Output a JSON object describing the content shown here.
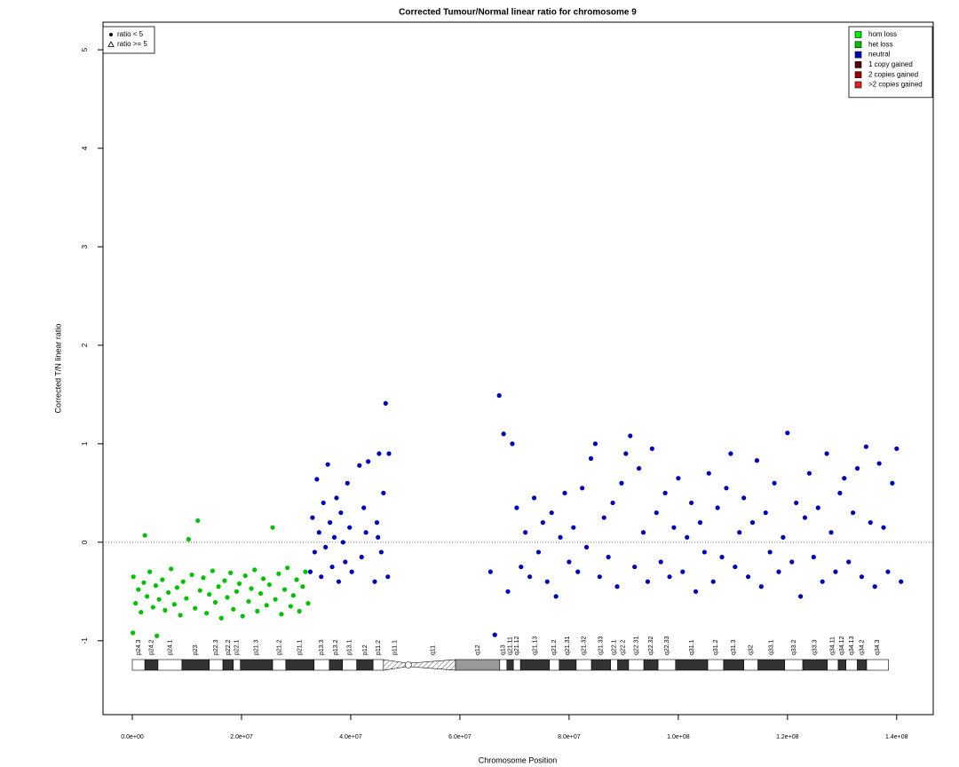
{
  "chart_data": {
    "type": "scatter",
    "title": "Corrected Tumour/Normal linear ratio for chromosome  9",
    "x_label": "Chromosome Position",
    "y_label": "Corrected T/N linear ratio",
    "xlim": [
      -5370000.0,
      146700000.0
    ],
    "ylim": [
      -1.75,
      5.28
    ],
    "xticks": [
      {
        "value": 0,
        "label": "0.0e+00"
      },
      {
        "value": 20000000.0,
        "label": "2.0e+07"
      },
      {
        "value": 40000000.0,
        "label": "4.0e+07"
      },
      {
        "value": 60000000.0,
        "label": "6.0e+07"
      },
      {
        "value": 80000000.0,
        "label": "8.0e+07"
      },
      {
        "value": 100000000.0,
        "label": "1.0e+08"
      },
      {
        "value": 120000000.0,
        "label": "1.2e+08"
      },
      {
        "value": 140000000.0,
        "label": "1.4e+08"
      }
    ],
    "yticks": [
      -1,
      0,
      1,
      2,
      3,
      4,
      5
    ],
    "reference_line": 0,
    "legend_position": "top-right",
    "shape_legend": [
      {
        "label": "ratio < 5",
        "shape": "dot"
      },
      {
        "label": "ratio >= 5",
        "shape": "triangle"
      }
    ],
    "series": [
      {
        "name": "hom loss",
        "color": "#00ee00",
        "x": [],
        "values": []
      },
      {
        "name": "het loss",
        "color": "#00c000",
        "x": [
          100000.0,
          200000.0,
          600000.0,
          1100000.0,
          1600000.0,
          2100000.0,
          2300000.0,
          2700000.0,
          3200000.0,
          3800000.0,
          4300000.0,
          4500000.0,
          4900000.0,
          5500000.0,
          6000000.0,
          6600000.0,
          7100000.0,
          7700000.0,
          8200000.0,
          8800000.0,
          9300000.0,
          9900000.0,
          10300000.0,
          10900000.0,
          11500000.0,
          12000000.0,
          12400000.0,
          13000000.0,
          13600000.0,
          14100000.0,
          14700000.0,
          15200000.0,
          15800000.0,
          16300000.0,
          16900000.0,
          17400000.0,
          18000000.0,
          18500000.0,
          19100000.0,
          19600000.0,
          20200000.0,
          20700000.0,
          21300000.0,
          21800000.0,
          22400000.0,
          22900000.0,
          23500000.0,
          24000000.0,
          24600000.0,
          25100000.0,
          25700000.0,
          26200000.0,
          26800000.0,
          27300000.0,
          27900000.0,
          28400000.0,
          29000000.0,
          29500000.0,
          30100000.0,
          30600000.0,
          31200000.0,
          31700000.0,
          32200000.0
        ],
        "values": [
          -0.92,
          -0.35,
          -0.62,
          -0.48,
          -0.71,
          -0.41,
          0.07,
          -0.55,
          -0.3,
          -0.66,
          -0.44,
          -0.95,
          -0.58,
          -0.38,
          -0.69,
          -0.51,
          -0.27,
          -0.63,
          -0.46,
          -0.74,
          -0.4,
          -0.57,
          0.03,
          -0.33,
          -0.67,
          0.22,
          -0.49,
          -0.36,
          -0.72,
          -0.53,
          -0.29,
          -0.61,
          -0.45,
          -0.77,
          -0.39,
          -0.56,
          -0.31,
          -0.68,
          -0.5,
          -0.42,
          -0.75,
          -0.34,
          -0.6,
          -0.47,
          -0.28,
          -0.7,
          -0.52,
          -0.37,
          -0.64,
          -0.43,
          0.15,
          -0.58,
          -0.32,
          -0.73,
          -0.48,
          -0.26,
          -0.65,
          -0.54,
          -0.38,
          -0.7,
          -0.45,
          -0.3,
          -0.62
        ]
      },
      {
        "name": "neutral",
        "color": "#0000bb",
        "x": [
          32600000.0,
          33000000.0,
          33400000.0,
          33800000.0,
          34200000.0,
          34600000.0,
          35000000.0,
          35400000.0,
          35800000.0,
          36200000.0,
          36600000.0,
          37000000.0,
          37400000.0,
          37800000.0,
          38200000.0,
          38600000.0,
          39000000.0,
          39400000.0,
          39800000.0,
          40200000.0,
          41600000.0,
          42000000.0,
          42400000.0,
          42800000.0,
          43200000.0,
          44400000.0,
          44800000.0,
          45200000.0,
          45600000.0,
          46000000.0,
          46400000.0,
          46800000.0,
          47000000.0,
          45000000.0,
          65600000.0,
          66400000.0,
          67200000.0,
          68000000.0,
          68800000.0,
          69600000.0,
          70400000.0,
          71200000.0,
          72000000.0,
          72800000.0,
          73600000.0,
          74400000.0,
          75200000.0,
          76000000.0,
          76800000.0,
          77600000.0,
          78400000.0,
          79200000.0,
          80000000.0,
          80800000.0,
          81600000.0,
          82400000.0,
          83200000.0,
          84000000.0,
          84800000.0,
          85600000.0,
          86400000.0,
          87200000.0,
          88000000.0,
          88800000.0,
          89600000.0,
          90400000.0,
          91200000.0,
          92000000.0,
          92800000.0,
          93600000.0,
          94400000.0,
          95200000.0,
          96000000.0,
          96800000.0,
          97600000.0,
          98400000.0,
          99200000.0,
          100000000.0,
          100800000.0,
          101600000.0,
          102400000.0,
          103200000.0,
          104000000.0,
          104800000.0,
          105600000.0,
          106400000.0,
          107200000.0,
          108000000.0,
          108800000.0,
          109600000.0,
          110400000.0,
          111200000.0,
          112000000.0,
          112800000.0,
          113600000.0,
          114400000.0,
          115200000.0,
          116000000.0,
          116800000.0,
          117600000.0,
          118400000.0,
          119200000.0,
          120000000.0,
          120800000.0,
          121600000.0,
          122400000.0,
          123200000.0,
          124000000.0,
          124800000.0,
          125600000.0,
          126400000.0,
          127200000.0,
          128000000.0,
          128800000.0,
          129600000.0,
          130400000.0,
          131200000.0,
          132000000.0,
          132800000.0,
          133600000.0,
          134400000.0,
          135200000.0,
          136000000.0,
          136800000.0,
          137600000.0,
          138400000.0,
          139200000.0,
          140000000.0,
          140800000.0
        ],
        "values": [
          -0.3,
          0.25,
          -0.1,
          0.64,
          0.1,
          -0.35,
          0.4,
          -0.05,
          0.79,
          0.2,
          -0.25,
          0.05,
          0.45,
          -0.4,
          0.3,
          0.0,
          -0.2,
          0.6,
          0.15,
          -0.3,
          0.78,
          -0.15,
          0.35,
          0.1,
          0.82,
          -0.4,
          0.2,
          0.9,
          -0.1,
          0.5,
          1.41,
          -0.35,
          0.9,
          0.05,
          -0.3,
          -0.94,
          1.49,
          1.1,
          -0.5,
          1.0,
          0.35,
          -0.25,
          0.1,
          -0.35,
          0.45,
          -0.1,
          0.2,
          -0.4,
          0.3,
          -0.55,
          0.05,
          0.5,
          -0.2,
          0.15,
          -0.3,
          0.55,
          -0.05,
          0.85,
          1.0,
          -0.35,
          0.25,
          -0.15,
          0.4,
          -0.45,
          0.6,
          0.9,
          1.08,
          -0.25,
          0.75,
          0.1,
          -0.4,
          0.95,
          0.3,
          -0.2,
          0.5,
          -0.35,
          0.15,
          0.65,
          -0.3,
          0.05,
          0.4,
          -0.5,
          0.2,
          -0.1,
          0.7,
          -0.4,
          0.35,
          -0.15,
          0.55,
          0.9,
          -0.25,
          0.1,
          0.45,
          -0.35,
          0.2,
          0.83,
          -0.45,
          0.3,
          -0.1,
          0.6,
          -0.3,
          0.05,
          1.11,
          -0.2,
          0.4,
          -0.55,
          0.25,
          0.7,
          -0.15,
          0.35,
          -0.4,
          0.9,
          0.1,
          -0.3,
          0.5,
          0.65,
          -0.2,
          0.3,
          0.75,
          -0.35,
          0.97,
          0.2,
          -0.45,
          0.8,
          0.15,
          -0.3,
          0.6,
          0.95,
          -0.4
        ]
      },
      {
        "name": "1 copy gained",
        "color": "#550000",
        "x": [],
        "values": []
      },
      {
        "name": "2 copies gained",
        "color": "#990000",
        "x": [],
        "values": []
      },
      {
        "name": ">2 copies gained",
        "color": "#dd2222",
        "x": [],
        "values": []
      }
    ],
    "ideogram": {
      "bands": [
        {
          "name": "p24.3",
          "start": 0,
          "end": 2300000.0,
          "stain": "gneg"
        },
        {
          "name": "p24.2",
          "start": 2300000.0,
          "end": 4700000.0,
          "stain": "gpos"
        },
        {
          "name": "p24.1",
          "start": 4700000.0,
          "end": 9100000.0,
          "stain": "gneg"
        },
        {
          "name": "p23",
          "start": 9100000.0,
          "end": 14100000.0,
          "stain": "gpos"
        },
        {
          "name": "p22.3",
          "start": 14100000.0,
          "end": 16600000.0,
          "stain": "gneg"
        },
        {
          "name": "p22.2",
          "start": 16600000.0,
          "end": 18500000.0,
          "stain": "gpos"
        },
        {
          "name": "p22.1",
          "start": 18500000.0,
          "end": 19800000.0,
          "stain": "gneg"
        },
        {
          "name": "p21.3",
          "start": 19800000.0,
          "end": 25700000.0,
          "stain": "gpos"
        },
        {
          "name": "p21.2",
          "start": 25700000.0,
          "end": 28100000.0,
          "stain": "gneg"
        },
        {
          "name": "p21.1",
          "start": 28100000.0,
          "end": 33300000.0,
          "stain": "gpos"
        },
        {
          "name": "p13.3",
          "start": 33300000.0,
          "end": 36100000.0,
          "stain": "gneg"
        },
        {
          "name": "p13.2",
          "start": 36100000.0,
          "end": 38500000.0,
          "stain": "gpos"
        },
        {
          "name": "p13.1",
          "start": 38500000.0,
          "end": 41100000.0,
          "stain": "gneg"
        },
        {
          "name": "p12",
          "start": 41100000.0,
          "end": 44100000.0,
          "stain": "gpos"
        },
        {
          "name": "p11.2",
          "start": 44100000.0,
          "end": 46000000.0,
          "stain": "gneg"
        },
        {
          "name": "p11.1",
          "start": 46000000.0,
          "end": 50200000.0,
          "stain": "acen"
        },
        {
          "name": "q11",
          "start": 50900000.0,
          "end": 59200000.0,
          "stain": "acen"
        },
        {
          "name": "q12",
          "start": 59200000.0,
          "end": 67300000.0,
          "stain": "gvar"
        },
        {
          "name": "q13",
          "start": 67300000.0,
          "end": 68600000.0,
          "stain": "gneg"
        },
        {
          "name": "q21.11",
          "start": 68600000.0,
          "end": 69800000.0,
          "stain": "gpos"
        },
        {
          "name": "q21.12",
          "start": 69800000.0,
          "end": 71100000.0,
          "stain": "gneg"
        },
        {
          "name": "q21.13",
          "start": 71100000.0,
          "end": 76400000.0,
          "stain": "gpos"
        },
        {
          "name": "q21.2",
          "start": 76400000.0,
          "end": 78200000.0,
          "stain": "gneg"
        },
        {
          "name": "q21.31",
          "start": 78200000.0,
          "end": 81300000.0,
          "stain": "gpos"
        },
        {
          "name": "q21.32",
          "start": 81300000.0,
          "end": 84100000.0,
          "stain": "gneg"
        },
        {
          "name": "q21.33",
          "start": 84100000.0,
          "end": 87600000.0,
          "stain": "gpos"
        },
        {
          "name": "q22.1",
          "start": 87600000.0,
          "end": 88900000.0,
          "stain": "gneg"
        },
        {
          "name": "q22.2",
          "start": 88900000.0,
          "end": 90900000.0,
          "stain": "gpos"
        },
        {
          "name": "q22.31",
          "start": 90900000.0,
          "end": 93700000.0,
          "stain": "gneg"
        },
        {
          "name": "q22.32",
          "start": 93700000.0,
          "end": 96300000.0,
          "stain": "gpos"
        },
        {
          "name": "q22.33",
          "start": 96300000.0,
          "end": 99500000.0,
          "stain": "gneg"
        },
        {
          "name": "q31.1",
          "start": 99500000.0,
          "end": 105400000.0,
          "stain": "gpos"
        },
        {
          "name": "q31.2",
          "start": 105400000.0,
          "end": 108300000.0,
          "stain": "gneg"
        },
        {
          "name": "q31.3",
          "start": 108300000.0,
          "end": 112000000.0,
          "stain": "gpos"
        },
        {
          "name": "q32",
          "start": 112000000.0,
          "end": 114600000.0,
          "stain": "gneg"
        },
        {
          "name": "q33.1",
          "start": 114600000.0,
          "end": 119500000.0,
          "stain": "gpos"
        },
        {
          "name": "q33.2",
          "start": 119500000.0,
          "end": 122800000.0,
          "stain": "gneg"
        },
        {
          "name": "q33.3",
          "start": 122800000.0,
          "end": 127300000.0,
          "stain": "gpos"
        },
        {
          "name": "q34.11",
          "start": 127300000.0,
          "end": 129300000.0,
          "stain": "gneg"
        },
        {
          "name": "q34.12",
          "start": 129300000.0,
          "end": 130700000.0,
          "stain": "gpos"
        },
        {
          "name": "q34.13",
          "start": 130700000.0,
          "end": 132800000.0,
          "stain": "gneg"
        },
        {
          "name": "q34.2",
          "start": 132800000.0,
          "end": 134500000.0,
          "stain": "gpos"
        },
        {
          "name": "q34.3",
          "start": 134500000.0,
          "end": 138500000.0,
          "stain": "gneg"
        }
      ]
    }
  }
}
